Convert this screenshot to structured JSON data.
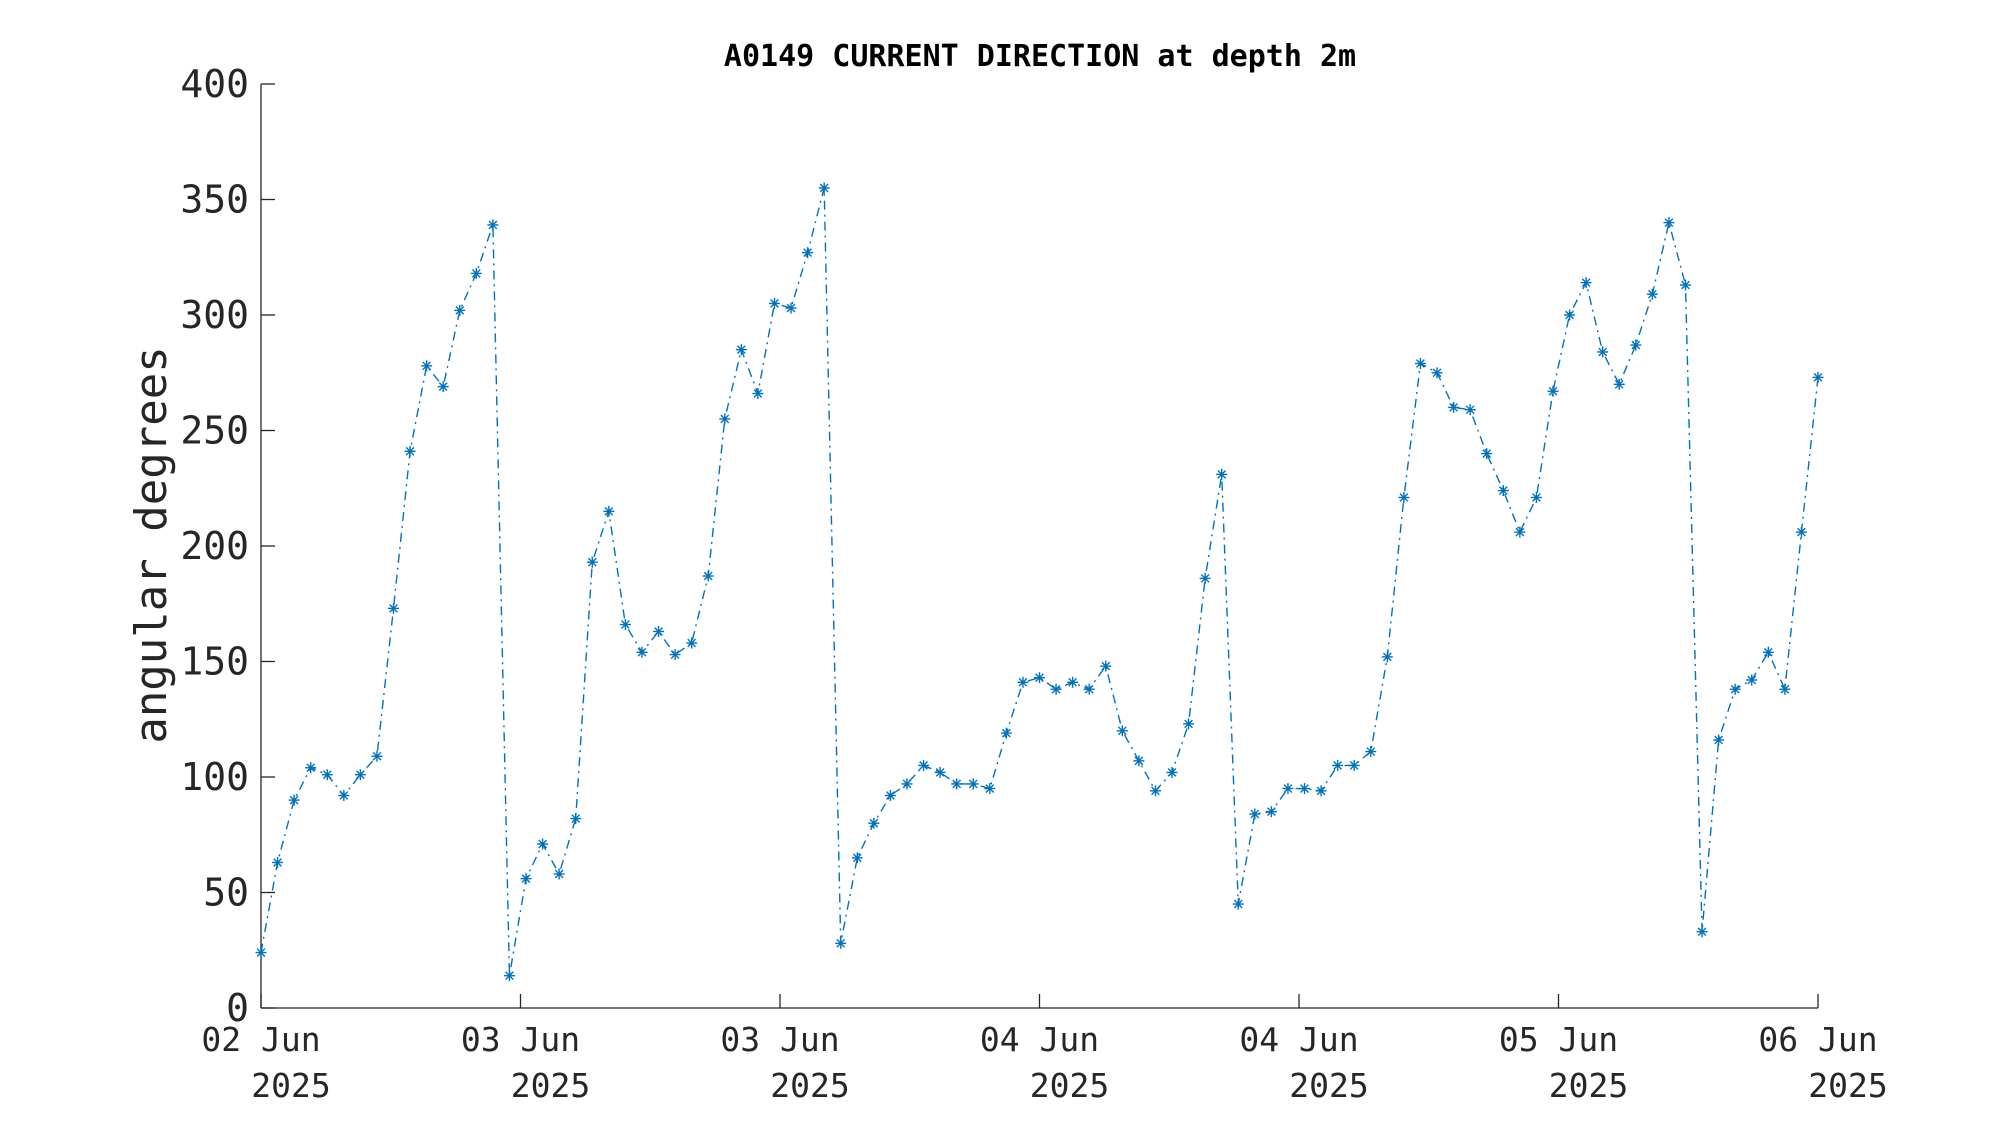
{
  "chart_data": {
    "type": "line",
    "title": "A0149 CURRENT DIRECTION at depth 2m",
    "xlabel": "",
    "ylabel": "angular degrees",
    "ylim": [
      0,
      400
    ],
    "yticks": [
      0,
      50,
      100,
      150,
      200,
      250,
      300,
      350,
      400
    ],
    "ytick_labels": [
      "0",
      "50",
      "100",
      "150",
      "200",
      "250",
      "300",
      "350",
      "400"
    ],
    "xlim": [
      "02 Jun 2025",
      "06 Jun 2025"
    ],
    "xticks": [
      {
        "line1": "02 Jun",
        "line2": "2025"
      },
      {
        "line1": "03 Jun",
        "line2": "2025"
      },
      {
        "line1": "03 Jun",
        "line2": "2025"
      },
      {
        "line1": "04 Jun",
        "line2": "2025"
      },
      {
        "line1": "04 Jun",
        "line2": "2025"
      },
      {
        "line1": "05 Jun",
        "line2": "2025"
      },
      {
        "line1": "06 Jun",
        "line2": "2025"
      }
    ],
    "grid": false,
    "color": "#0072BD",
    "line_style": "dash-dot",
    "marker": "asterisk",
    "series": [
      {
        "values": [
          24,
          63,
          90,
          104,
          101,
          92,
          101,
          109,
          173,
          241,
          278,
          269,
          302,
          318,
          339,
          14,
          56,
          71,
          58,
          82,
          193,
          215,
          166,
          154,
          163,
          153,
          158,
          187,
          255,
          285,
          266,
          305,
          303,
          327,
          355,
          28,
          65,
          80,
          92,
          97,
          105,
          102,
          97,
          97,
          95,
          119,
          141,
          143,
          138,
          141,
          138,
          148,
          120,
          107,
          94,
          102,
          123,
          186,
          231,
          45,
          84,
          85,
          95,
          95,
          94,
          105,
          105,
          111,
          152,
          221,
          279,
          275,
          260,
          259,
          240,
          224,
          206,
          221,
          267,
          300,
          314,
          284,
          270,
          287,
          309,
          340,
          313,
          33,
          116,
          138,
          142,
          154,
          138,
          206,
          273
        ]
      }
    ]
  }
}
